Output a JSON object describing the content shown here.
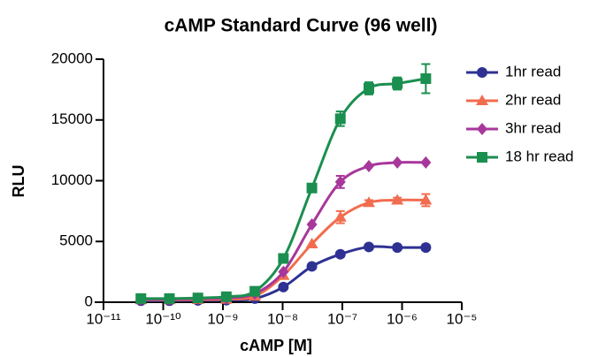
{
  "chart_data": {
    "type": "line",
    "title": "cAMP Standard Curve (96 well)",
    "x_label": "cAMP [M]",
    "y_label": "RLU",
    "xscale": "log",
    "x": [
      4.23e-11,
      1.27e-10,
      3.81e-10,
      1.14e-09,
      3.43e-09,
      1.03e-08,
      3.09e-08,
      9.26e-08,
      2.78e-07,
      8.33e-07,
      2.5e-06
    ],
    "series": [
      {
        "name": "1hr read",
        "color": "#2e3192",
        "marker": "circle",
        "values": [
          130,
          130,
          150,
          170,
          300,
          1250,
          2950,
          3950,
          4550,
          4500,
          4500
        ],
        "errors": [
          null,
          null,
          null,
          null,
          null,
          null,
          null,
          200,
          150,
          150,
          200
        ]
      },
      {
        "name": "2hr read",
        "color": "#f26c4f",
        "marker": "triangle",
        "values": [
          200,
          200,
          220,
          250,
          500,
          2200,
          4800,
          7000,
          8200,
          8400,
          8400
        ],
        "errors": [
          null,
          null,
          null,
          null,
          null,
          null,
          null,
          500,
          200,
          200,
          500
        ]
      },
      {
        "name": "3hr read",
        "color": "#a8379b",
        "marker": "diamond",
        "values": [
          250,
          250,
          300,
          350,
          700,
          2500,
          6400,
          9900,
          11200,
          11500,
          11500
        ],
        "errors": [
          null,
          null,
          null,
          null,
          null,
          null,
          null,
          500,
          null,
          null,
          null
        ]
      },
      {
        "name": "18 hr read",
        "color": "#1b8f4f",
        "marker": "square",
        "values": [
          300,
          300,
          350,
          450,
          900,
          3600,
          9400,
          15100,
          17600,
          18000,
          18400
        ],
        "errors": [
          null,
          null,
          null,
          null,
          null,
          null,
          null,
          600,
          500,
          500,
          1200
        ]
      }
    ],
    "xlim": [
      1e-11,
      1e-05
    ],
    "xticks": [
      {
        "value": 1e-11,
        "label": "10⁻¹¹"
      },
      {
        "value": 1e-10,
        "label": "10⁻¹⁰"
      },
      {
        "value": 1e-09,
        "label": "10⁻⁹"
      },
      {
        "value": 1e-08,
        "label": "10⁻⁸"
      },
      {
        "value": 1e-07,
        "label": "10⁻⁷"
      },
      {
        "value": 1e-06,
        "label": "10⁻⁶"
      },
      {
        "value": 1e-05,
        "label": "10⁻⁵"
      }
    ],
    "ylim": [
      0,
      20000
    ],
    "yticks": [
      0,
      5000,
      10000,
      15000,
      20000
    ],
    "legend": "right"
  }
}
